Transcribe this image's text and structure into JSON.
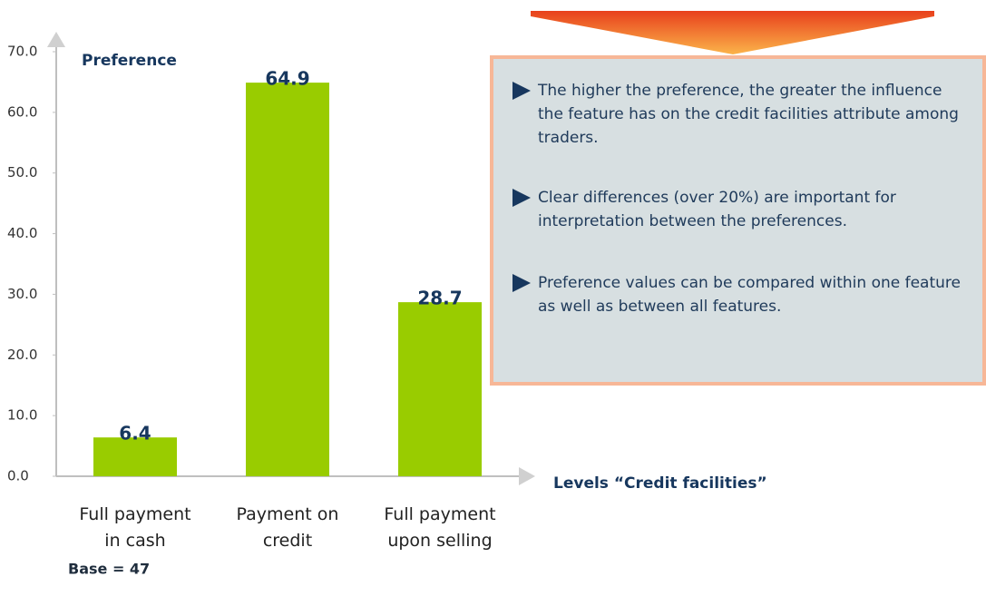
{
  "chart_data": {
    "type": "bar",
    "ylabel": "Preference",
    "xlabel": "Levels “Credit facilities”",
    "categories": [
      "Full payment in cash",
      "Payment on credit",
      "Full payment upon selling"
    ],
    "values": [
      6.4,
      64.9,
      28.7
    ],
    "color": "#99cc00",
    "ylim": [
      0,
      70
    ],
    "yticks": [
      {
        "value": 0,
        "label": "0.0"
      },
      {
        "value": 10,
        "label": "10.0"
      },
      {
        "value": 20,
        "label": "20.0"
      },
      {
        "value": 30,
        "label": "30.0"
      },
      {
        "value": 40,
        "label": "40.0"
      },
      {
        "value": 50,
        "label": "50.0"
      },
      {
        "value": 60,
        "label": "60.0"
      },
      {
        "value": 70,
        "label": "70.0"
      }
    ],
    "grid": false,
    "footnote": "Base = 47",
    "notes": [
      "The higher the preference, the greater the influence the feature has on the credit facilities attribute among traders.",
      "Clear differences (over 20%) are important for interpretation between the preferences.",
      "Preference values can be compared within one feature as well as between all features."
    ]
  }
}
